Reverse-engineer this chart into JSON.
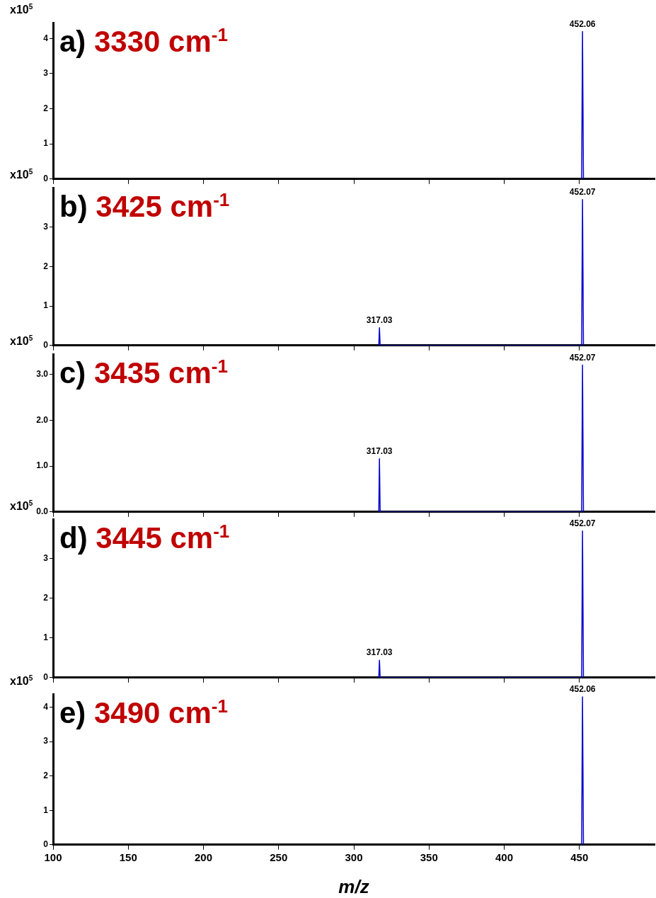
{
  "chart_data": [
    {
      "type": "line",
      "title": "a) 3330 cm$^{-1}$",
      "ylabel": "x10$^{5}$",
      "xlim": [
        100,
        500
      ],
      "xticks": [
        100,
        150,
        200,
        250,
        300,
        350,
        400,
        450
      ],
      "ylim": [
        0,
        4.45
      ],
      "yticks": [
        0,
        1,
        2,
        3,
        4
      ],
      "tick_labels": "y",
      "grid": false,
      "legend": false,
      "marker": "none",
      "series": [
        {
          "color": "#0000cc",
          "x": [
            451.5,
            452.06,
            452.7
          ],
          "values": [
            0,
            4.2,
            0
          ]
        }
      ],
      "annotations": [
        {
          "text": "452.06",
          "x": 452.06,
          "y": 4.2
        }
      ]
    },
    {
      "type": "line",
      "title": "b) 3425 cm$^{-1}$",
      "ylabel": "x10$^{5}$",
      "xlim": [
        100,
        500
      ],
      "xticks": [
        100,
        150,
        200,
        250,
        300,
        350,
        400,
        450
      ],
      "ylim": [
        0,
        4.0
      ],
      "yticks": [
        0,
        1,
        2,
        3
      ],
      "tick_labels": "y",
      "grid": false,
      "legend": false,
      "marker": "none",
      "series": [
        {
          "color": "#0000cc",
          "x": [
            316.6,
            317.03,
            317.5,
            451.5,
            452.07,
            452.7
          ],
          "values": [
            0,
            0.45,
            0,
            0,
            3.7,
            0
          ]
        }
      ],
      "annotations": [
        {
          "text": "317.03",
          "x": 317.03,
          "y": 0.45
        },
        {
          "text": "452.07",
          "x": 452.07,
          "y": 3.7
        }
      ]
    },
    {
      "type": "line",
      "title": "c) 3435 cm$^{-1}$",
      "ylabel": "x10$^{5}$",
      "xlim": [
        100,
        500
      ],
      "xticks": [
        100,
        150,
        200,
        250,
        300,
        350,
        400,
        450
      ],
      "ylim": [
        0,
        3.44
      ],
      "yticks": [
        {
          "value": 0,
          "label": "0.0"
        },
        {
          "value": 1,
          "label": "1.0"
        },
        {
          "value": 2,
          "label": "2.0"
        },
        {
          "value": 3,
          "label": "3.0"
        }
      ],
      "tick_labels": "y",
      "grid": false,
      "legend": false,
      "marker": "none",
      "series": [
        {
          "color": "#0000cc",
          "x": [
            316.6,
            317.03,
            317.5,
            451.5,
            452.07,
            452.7
          ],
          "values": [
            0,
            1.16,
            0,
            0,
            3.2,
            0
          ]
        }
      ],
      "annotations": [
        {
          "text": "317.03",
          "x": 317.03,
          "y": 1.16
        },
        {
          "text": "452.07",
          "x": 452.07,
          "y": 3.2
        }
      ]
    },
    {
      "type": "line",
      "title": "d) 3445 cm$^{-1}$",
      "ylabel": "x10$^{5}$",
      "xlim": [
        100,
        500
      ],
      "xticks": [
        100,
        150,
        200,
        250,
        300,
        350,
        400,
        450
      ],
      "ylim": [
        0,
        4.0
      ],
      "yticks": [
        0,
        1,
        2,
        3
      ],
      "tick_labels": "y",
      "grid": false,
      "legend": false,
      "marker": "none",
      "series": [
        {
          "color": "#0000cc",
          "x": [
            316.6,
            317.03,
            317.5,
            451.5,
            452.07,
            452.7
          ],
          "values": [
            0,
            0.44,
            0,
            0,
            3.7,
            0
          ]
        }
      ],
      "annotations": [
        {
          "text": "317.03",
          "x": 317.03,
          "y": 0.44
        },
        {
          "text": "452.07",
          "x": 452.07,
          "y": 3.7
        }
      ]
    },
    {
      "type": "line",
      "title": "e) 3490 cm$^{-1}$",
      "ylabel": "x10$^{5}$",
      "xlabel": "m/z",
      "xlim": [
        100,
        500
      ],
      "xticks": [
        100,
        150,
        200,
        250,
        300,
        350,
        400,
        450
      ],
      "ylim": [
        0,
        4.38
      ],
      "yticks": [
        0,
        1,
        2,
        3,
        4
      ],
      "grid": false,
      "legend": false,
      "marker": "none",
      "series": [
        {
          "color": "#0000cc",
          "x": [
            451.5,
            452.06,
            452.7
          ],
          "values": [
            0,
            4.3,
            0
          ]
        }
      ],
      "annotations": [
        {
          "text": "452.06",
          "x": 452.06,
          "y": 4.3
        }
      ]
    }
  ]
}
